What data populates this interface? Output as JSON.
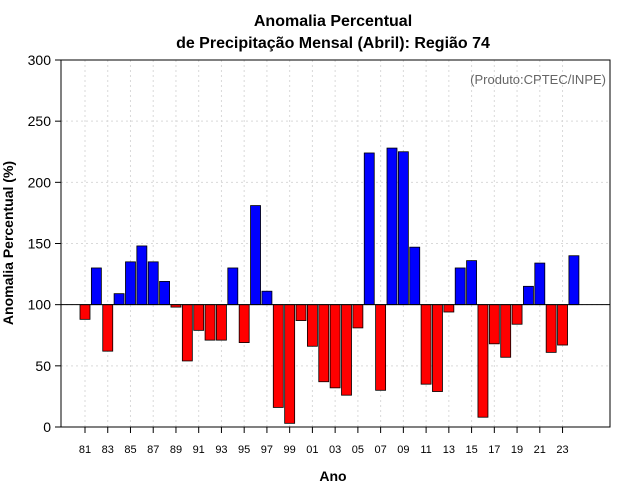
{
  "chart_data": {
    "type": "bar",
    "title": "Anomalia Percentual",
    "subtitle": "de Precipitação Mensal (Abril): Região 74",
    "xlabel": "Ano",
    "ylabel": "Anomalia Percentual (%)",
    "credit": "(Produto:CPTEC/INPE)",
    "ylim": [
      0,
      300
    ],
    "yticks": [
      "0",
      "50",
      "100",
      "150",
      "200",
      "250",
      "300"
    ],
    "baseline": 100,
    "grid": true,
    "colors": {
      "above": "#0000ff",
      "below": "#ff0000"
    },
    "categories": [
      "81",
      "82",
      "83",
      "84",
      "85",
      "86",
      "87",
      "88",
      "89",
      "90",
      "91",
      "92",
      "93",
      "94",
      "95",
      "96",
      "97",
      "98",
      "99",
      "00",
      "01",
      "02",
      "03",
      "04",
      "05",
      "06",
      "07",
      "08",
      "09",
      "10",
      "11",
      "12",
      "13",
      "14",
      "15",
      "16",
      "17",
      "18",
      "19",
      "20",
      "21",
      "22",
      "23",
      "24"
    ],
    "xtick_labels": [
      "81",
      "83",
      "85",
      "87",
      "89",
      "91",
      "93",
      "95",
      "97",
      "99",
      "01",
      "03",
      "05",
      "07",
      "09",
      "11",
      "13",
      "15",
      "17",
      "19",
      "21",
      "23"
    ],
    "values": [
      88,
      130,
      62,
      109,
      135,
      148,
      135,
      119,
      98,
      54,
      79,
      71,
      71,
      130,
      69,
      181,
      111,
      16,
      3,
      87,
      66,
      37,
      32,
      26,
      81,
      224,
      30,
      228,
      225,
      147,
      35,
      29,
      94,
      130,
      136,
      8,
      68,
      57,
      84,
      115,
      134,
      61,
      67,
      140
    ]
  }
}
